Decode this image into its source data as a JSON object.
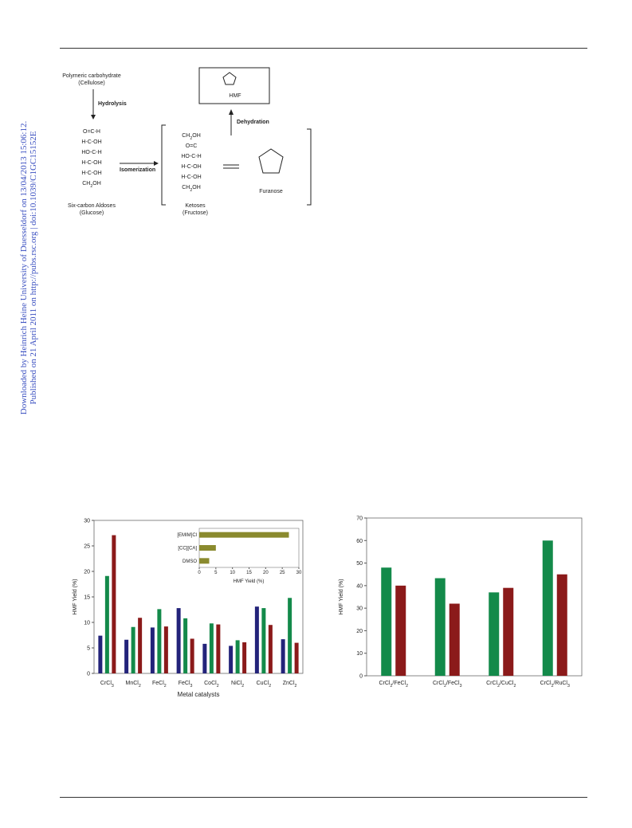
{
  "sidebar": [
    "Downloaded by Heinrich Heine University of Duesseldorf on 13/04/2013 15:06:12.",
    "Published on 21 April 2011 on http://pubs.rsc.org | doi:10.1039/C1GC15152E"
  ],
  "scheme": {
    "cellulose": [
      "Polymeric carbohydrate",
      "(Cellulose)"
    ],
    "hydrolysis": "Hydrolysis",
    "glucose_rows": [
      "O=C-H",
      "H-C-OH",
      "HO-C-H",
      "H-C-OH",
      "H-C-OH",
      "CH2OH"
    ],
    "glucose_name": [
      "Six-carbon Aldoses",
      "(Glucose)"
    ],
    "isomerization": "Isomerization",
    "fructose_rows": [
      "CH2OH",
      "O=C",
      "HO-C-H",
      "H-C-OH",
      "H-C-OH",
      "CH2OH"
    ],
    "fructose_name": [
      "Ketoses",
      "(Fructose)"
    ],
    "furanose": "Furanose",
    "dehydration": "Dehydration",
    "hmf": "HMF"
  },
  "chart_data": [
    {
      "type": "bar",
      "ylabel": "HMF Yield (%)",
      "xlabel": "Metal catalysts",
      "categories": [
        "CrCl3",
        "MnCl2",
        "FeCl2",
        "FeCl3",
        "CoCl2",
        "NiCl2",
        "CuCl2",
        "ZnCl2"
      ],
      "series": [
        {
          "color": "#23237a",
          "values": [
            7.4,
            6.6,
            9.0,
            12.8,
            5.8,
            5.4,
            13.1,
            6.7
          ]
        },
        {
          "color": "#138a4a",
          "values": [
            19.1,
            9.1,
            12.6,
            10.8,
            9.8,
            6.5,
            12.8,
            14.8
          ]
        },
        {
          "color": "#8b1a1a",
          "values": [
            27.1,
            10.9,
            9.2,
            6.8,
            9.6,
            6.1,
            9.5,
            6.0
          ]
        }
      ],
      "ylim": [
        0,
        30
      ],
      "yticks": [
        0,
        5,
        10,
        15,
        20,
        25,
        30
      ]
    },
    {
      "type": "hbar",
      "xlabel": "HMF Yield (%)",
      "categories": [
        "[EMIM]Cl",
        "[CC][CA]",
        "DMSO"
      ],
      "values": [
        27,
        5,
        3
      ],
      "color": "#8a8a2e",
      "xlim": [
        0,
        30
      ],
      "xticks": [
        0,
        5,
        10,
        15,
        20,
        25,
        30
      ]
    },
    {
      "type": "bar",
      "ylabel": "HMF Yield (%)",
      "categories": [
        "CrCl2/FeCl2",
        "CrCl2/FeCl3",
        "CrCl2/CuCl2",
        "CrCl2/RuCl3"
      ],
      "series": [
        {
          "color": "#138a4a",
          "values": [
            48,
            43.3,
            37,
            60
          ]
        },
        {
          "color": "#8b1a1a",
          "values": [
            40,
            32,
            39,
            45
          ]
        }
      ],
      "ylim": [
        0,
        70
      ],
      "yticks": [
        0,
        10,
        20,
        30,
        40,
        50,
        60,
        70
      ]
    }
  ]
}
